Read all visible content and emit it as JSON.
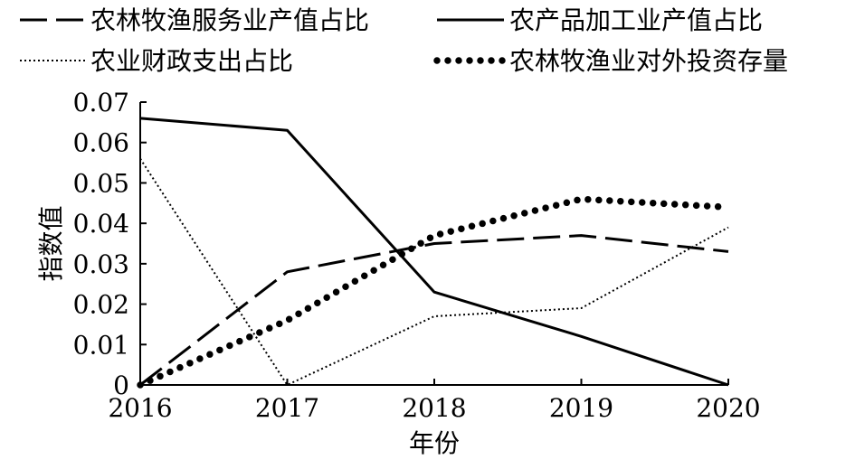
{
  "chart_data": {
    "type": "line",
    "xlabel": "年份",
    "ylabel": "指数值",
    "x": [
      "2016",
      "2017",
      "2018",
      "2019",
      "2020"
    ],
    "ylim": [
      0,
      0.07
    ],
    "yticks": [
      "0",
      "0.01",
      "0.02",
      "0.03",
      "0.04",
      "0.05",
      "0.06",
      "0.07"
    ],
    "legend_position": "top",
    "series": [
      {
        "name": "农林牧渔服务业产值占比",
        "style": "dashed",
        "color": "#000000",
        "values": [
          0,
          0.028,
          0.035,
          0.037,
          0.033
        ]
      },
      {
        "name": "农产品加工业产值占比",
        "style": "solid",
        "color": "#000000",
        "values": [
          0.066,
          0.063,
          0.023,
          0.012,
          0
        ]
      },
      {
        "name": "农业财政支出占比",
        "style": "dotted",
        "color": "#000000",
        "values": [
          0.056,
          0,
          0.017,
          0.019,
          0.039
        ]
      },
      {
        "name": "农林牧渔业对外投资存量",
        "style": "heavy-dotted",
        "color": "#000000",
        "values": [
          0,
          0.016,
          0.037,
          0.046,
          0.044
        ]
      }
    ]
  }
}
